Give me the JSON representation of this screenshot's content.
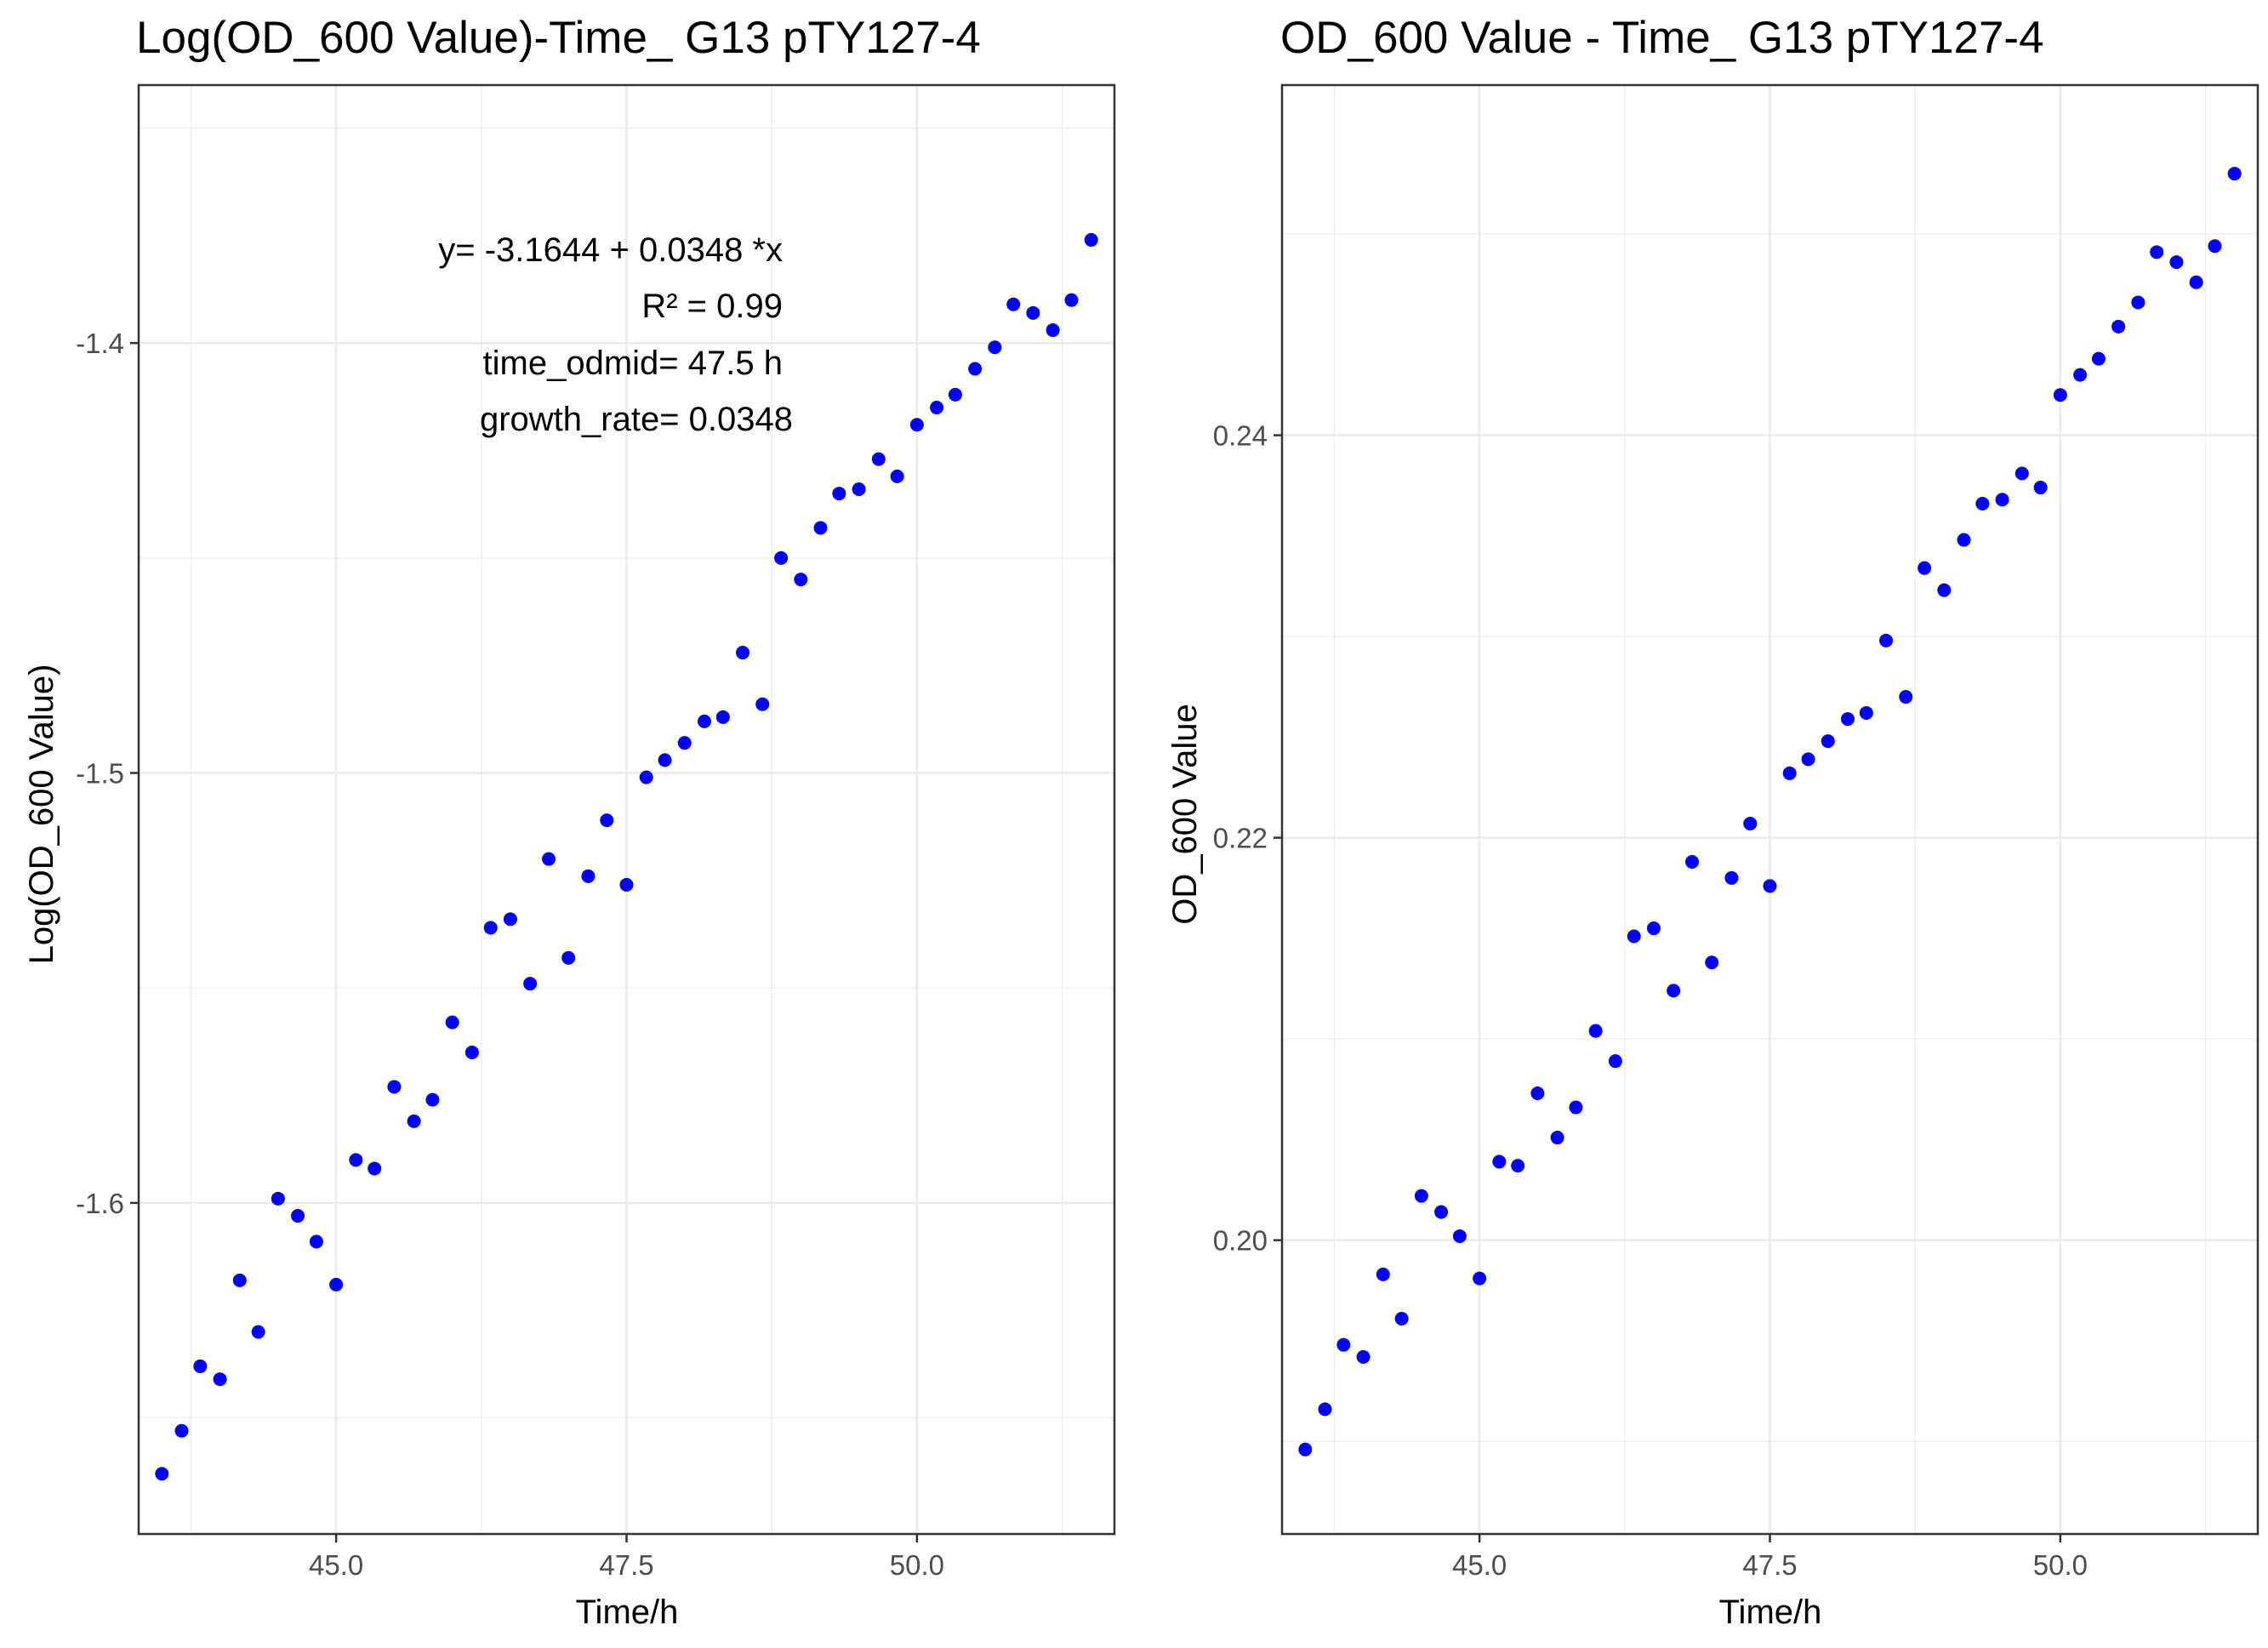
{
  "chart_data": [
    {
      "type": "scatter",
      "title": "Log(OD_600 Value)-Time_ G13 pTY127-4",
      "xlabel": "Time/h",
      "ylabel": "Log(OD_600 Value)",
      "xlim": [
        43.3,
        51.7
      ],
      "ylim": [
        -1.677,
        -1.34
      ],
      "x_ticks": [
        45.0,
        47.5,
        50.0
      ],
      "x_tick_labels": [
        "45.0",
        "47.5",
        "50.0"
      ],
      "y_ticks": [
        -1.6,
        -1.5,
        -1.4
      ],
      "y_tick_labels": [
        "-1.6",
        "-1.5",
        "-1.4"
      ],
      "grid": true,
      "point_color": "#0000ff",
      "fit_color": "#ff0000",
      "series": [
        {
          "x": [
            43.5,
            43.67,
            43.83,
            44.0,
            44.17,
            44.33,
            44.5,
            44.67,
            44.83,
            45.0,
            45.17,
            45.33,
            45.5,
            45.67,
            45.83,
            46.0,
            46.17,
            46.33,
            46.5,
            46.67,
            46.83,
            47.0,
            47.17,
            47.33,
            47.5,
            47.67,
            47.83,
            48.0,
            48.17,
            48.33,
            48.5,
            48.67,
            48.83,
            49.0,
            49.17,
            49.33,
            49.5,
            49.67,
            49.83,
            50.0,
            50.17,
            50.33,
            50.5,
            50.67,
            50.83,
            51.0,
            51.17,
            51.33,
            51.5
          ],
          "y": [
            -1.663,
            -1.653,
            -1.638,
            -1.641,
            -1.618,
            -1.63,
            -1.599,
            -1.603,
            -1.609,
            -1.619,
            -1.59,
            -1.592,
            -1.573,
            -1.581,
            -1.576,
            -1.558,
            -1.565,
            -1.536,
            -1.534,
            -1.549,
            -1.52,
            -1.543,
            -1.524,
            -1.511,
            -1.526,
            -1.501,
            -1.497,
            -1.493,
            -1.488,
            -1.487,
            -1.472,
            -1.484,
            -1.45,
            -1.455,
            -1.443,
            -1.435,
            -1.434,
            -1.427,
            -1.431,
            -1.419,
            -1.415,
            -1.412,
            -1.406,
            -1.401,
            -1.391,
            -1.393,
            -1.397,
            -1.39,
            -1.376
          ]
        }
      ],
      "fit_line": {
        "intercept": -3.1644,
        "slope": 0.0348,
        "x_range": [
          43.5,
          51.5
        ]
      },
      "annotations": [
        "y= -3.1644 + 0.0348 *x",
        "R² = 0.99",
        "time_odmid= 47.5 h",
        "growth_rate= 0.0348"
      ]
    },
    {
      "type": "scatter",
      "title": "OD_600 Value - Time_ G13 pTY127-4",
      "xlabel": "Time/h",
      "ylabel": "OD_600 Value",
      "xlim": [
        43.3,
        51.7
      ],
      "ylim": [
        0.1854,
        0.2574
      ],
      "x_ticks": [
        45.0,
        47.5,
        50.0
      ],
      "x_tick_labels": [
        "45.0",
        "47.5",
        "50.0"
      ],
      "y_ticks": [
        0.2,
        0.22,
        0.24
      ],
      "y_tick_labels": [
        "0.20",
        "0.22",
        "0.24"
      ],
      "grid": true,
      "point_color": "#0000ff",
      "series": [
        {
          "x": [
            43.5,
            43.67,
            43.83,
            44.0,
            44.17,
            44.33,
            44.5,
            44.67,
            44.83,
            45.0,
            45.17,
            45.33,
            45.5,
            45.67,
            45.83,
            46.0,
            46.17,
            46.33,
            46.5,
            46.67,
            46.83,
            47.0,
            47.17,
            47.33,
            47.5,
            47.67,
            47.83,
            48.0,
            48.17,
            48.33,
            48.5,
            48.67,
            48.83,
            49.0,
            49.17,
            49.33,
            49.5,
            49.67,
            49.83,
            50.0,
            50.17,
            50.33,
            50.5,
            50.67,
            50.83,
            51.0,
            51.17,
            51.33,
            51.5
          ],
          "y": [
            0.1896,
            0.1916,
            0.1948,
            0.1942,
            0.1983,
            0.1961,
            0.2022,
            0.2014,
            0.2002,
            0.1981,
            0.2039,
            0.2037,
            0.2073,
            0.2051,
            0.2066,
            0.2104,
            0.2089,
            0.2151,
            0.2155,
            0.2124,
            0.2188,
            0.2138,
            0.218,
            0.2207,
            0.2176,
            0.2232,
            0.2239,
            0.2248,
            0.2259,
            0.2262,
            0.2298,
            0.227,
            0.2334,
            0.2323,
            0.2348,
            0.2366,
            0.2368,
            0.2381,
            0.2374,
            0.242,
            0.243,
            0.2438,
            0.2454,
            0.2466,
            0.2491,
            0.2486,
            0.2476,
            0.2494,
            0.253
          ]
        }
      ]
    }
  ]
}
